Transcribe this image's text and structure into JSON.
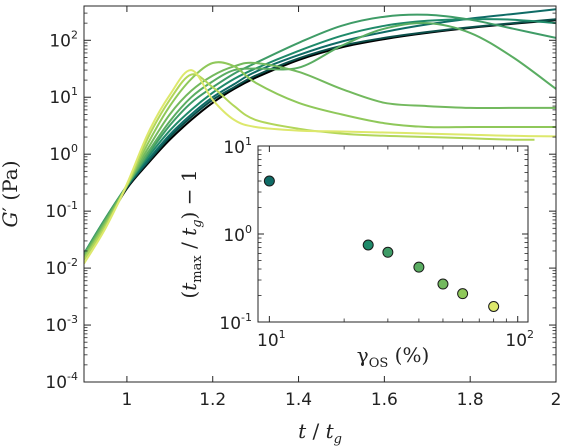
{
  "chart_data": [
    {
      "type": "line",
      "title": "",
      "xlabel": {
        "var": "t",
        "sep": " / ",
        "den": "t",
        "den_sub": "g"
      },
      "ylabel": {
        "var": "G",
        "prime": "′",
        "unit": " (Pa)"
      },
      "xlim": [
        0.9,
        2.0
      ],
      "ylim": [
        0.0001,
        400
      ],
      "yscale": "log",
      "xticks": [
        "1",
        "1.2",
        "1.4",
        "1.6",
        "1.8",
        "2"
      ],
      "yticks": [
        {
          "base": "10",
          "exp": "-4"
        },
        {
          "base": "10",
          "exp": "-3"
        },
        {
          "base": "10",
          "exp": "-2"
        },
        {
          "base": "10",
          "exp": "-1"
        },
        {
          "base": "10",
          "exp": "0"
        },
        {
          "base": "10",
          "exp": "1"
        },
        {
          "base": "10",
          "exp": "2"
        }
      ],
      "series": [
        {
          "color": "#000000",
          "x": [
            0.9,
            0.95,
            1.0,
            1.05,
            1.1,
            1.15,
            1.2,
            1.25,
            1.3,
            1.4,
            1.5,
            1.6,
            1.7,
            1.8,
            1.9,
            2.0
          ],
          "y": [
            0.015,
            0.06,
            0.25,
            0.7,
            1.8,
            4,
            8,
            14,
            22,
            45,
            75,
            105,
            135,
            165,
            195,
            225
          ]
        },
        {
          "color": "#0b4f4a",
          "x": [
            0.9,
            0.95,
            1.0,
            1.05,
            1.1,
            1.15,
            1.2,
            1.25,
            1.3,
            1.4,
            1.5,
            1.6,
            1.7,
            1.8,
            1.9,
            2.0
          ],
          "y": [
            0.016,
            0.065,
            0.26,
            0.75,
            2.0,
            4.5,
            9,
            15,
            24,
            48,
            80,
            110,
            140,
            170,
            200,
            235
          ]
        },
        {
          "color": "#0f6b66",
          "x": [
            0.9,
            0.95,
            1.0,
            1.05,
            1.1,
            1.15,
            1.2,
            1.25,
            1.3,
            1.4,
            1.5,
            1.6,
            1.7,
            1.8,
            1.9,
            2.0
          ],
          "y": [
            0.017,
            0.07,
            0.27,
            0.8,
            2.2,
            5,
            10,
            17,
            28,
            55,
            95,
            140,
            190,
            240,
            290,
            350
          ]
        },
        {
          "color": "#1f8a6a",
          "x": [
            0.9,
            0.95,
            1.0,
            1.05,
            1.1,
            1.15,
            1.2,
            1.25,
            1.3,
            1.4,
            1.5,
            1.6,
            1.7,
            1.8,
            1.9,
            2.0
          ],
          "y": [
            0.018,
            0.075,
            0.28,
            0.9,
            2.6,
            6,
            12,
            21,
            32,
            65,
            120,
            180,
            220,
            235,
            230,
            200
          ]
        },
        {
          "color": "#3f9c67",
          "x": [
            0.9,
            0.95,
            1.0,
            1.05,
            1.1,
            1.15,
            1.2,
            1.25,
            1.3,
            1.4,
            1.5,
            1.6,
            1.7,
            1.8,
            1.9,
            2.0
          ],
          "y": [
            0.018,
            0.075,
            0.28,
            1.0,
            3.2,
            8,
            15,
            26,
            40,
            90,
            180,
            260,
            280,
            230,
            160,
            110
          ]
        },
        {
          "color": "#5aad62",
          "x": [
            0.9,
            0.95,
            1.0,
            1.05,
            1.1,
            1.15,
            1.2,
            1.25,
            1.3,
            1.4,
            1.5,
            1.6,
            1.7,
            1.8,
            1.9,
            2.0
          ],
          "y": [
            0.017,
            0.07,
            0.28,
            1.1,
            3.8,
            10,
            19,
            30,
            32,
            33,
            80,
            160,
            200,
            135,
            50,
            14
          ]
        },
        {
          "color": "#73b95e",
          "x": [
            0.9,
            0.95,
            1.0,
            1.05,
            1.1,
            1.15,
            1.2,
            1.25,
            1.3,
            1.4,
            1.5,
            1.6,
            1.7,
            1.8,
            1.9,
            2.0
          ],
          "y": [
            0.016,
            0.065,
            0.28,
            1.3,
            5,
            13,
            24,
            35,
            40,
            28,
            14,
            8,
            7,
            6.5,
            6.5,
            6.5
          ]
        },
        {
          "color": "#8fc85a",
          "x": [
            0.9,
            0.95,
            1.0,
            1.05,
            1.1,
            1.15,
            1.2,
            1.25,
            1.3,
            1.4,
            1.5,
            1.6,
            1.7,
            1.8,
            1.9,
            2.0
          ],
          "y": [
            0.015,
            0.06,
            0.28,
            1.6,
            7,
            21,
            40,
            35,
            18,
            8,
            5,
            3.5,
            3,
            3,
            3,
            3
          ]
        },
        {
          "color": "#b2d65a",
          "x": [
            0.9,
            0.95,
            1.0,
            1.05,
            1.1,
            1.15,
            1.2,
            1.25,
            1.3,
            1.4,
            1.5,
            1.6,
            1.7,
            1.8,
            1.9,
            1.95
          ],
          "y": [
            0.014,
            0.055,
            0.28,
            2.0,
            9,
            25,
            15,
            7,
            4,
            2.8,
            2.3,
            2.1,
            2.0,
            1.9,
            1.8,
            1.8
          ]
        },
        {
          "color": "#dde86c",
          "x": [
            0.9,
            0.95,
            1.0,
            1.05,
            1.1,
            1.15,
            1.2,
            1.25,
            1.3,
            1.4,
            1.5,
            1.6,
            1.7,
            1.8,
            1.9,
            2.0
          ],
          "y": [
            0.012,
            0.05,
            0.3,
            2.4,
            11,
            30,
            9,
            4,
            3,
            2.6,
            2.5,
            2.4,
            2.3,
            2.2,
            2.1,
            2.05
          ]
        }
      ]
    },
    {
      "type": "scatter",
      "title": "",
      "xlabel": {
        "var": "γ",
        "sub": "OS",
        "unit": " (%)"
      },
      "ylabel": {
        "open": "(",
        "var": "t",
        "sub": "max",
        "sep": " / ",
        "den": "t",
        "den_sub": "g",
        "close": ")",
        "rest": " − 1"
      },
      "xscale": "log",
      "yscale": "log",
      "xlim": [
        9,
        110
      ],
      "ylim": [
        0.1,
        10
      ],
      "xticks": [
        {
          "base": "10",
          "exp": "1"
        },
        {
          "base": "10",
          "exp": "2"
        }
      ],
      "yticks": [
        {
          "base": "10",
          "exp": "-1"
        },
        {
          "base": "10",
          "exp": "0"
        },
        {
          "base": "10",
          "exp": "1"
        }
      ],
      "points": [
        {
          "x": 10,
          "y": 4.0,
          "color": "#0f6b66"
        },
        {
          "x": 25,
          "y": 0.75,
          "color": "#1f8a6a"
        },
        {
          "x": 30,
          "y": 0.62,
          "color": "#3f9c67"
        },
        {
          "x": 40,
          "y": 0.42,
          "color": "#5aad62"
        },
        {
          "x": 50,
          "y": 0.27,
          "color": "#73b95e"
        },
        {
          "x": 60,
          "y": 0.21,
          "color": "#8fc85a"
        },
        {
          "x": 80,
          "y": 0.15,
          "color": "#dde86c"
        }
      ]
    }
  ]
}
